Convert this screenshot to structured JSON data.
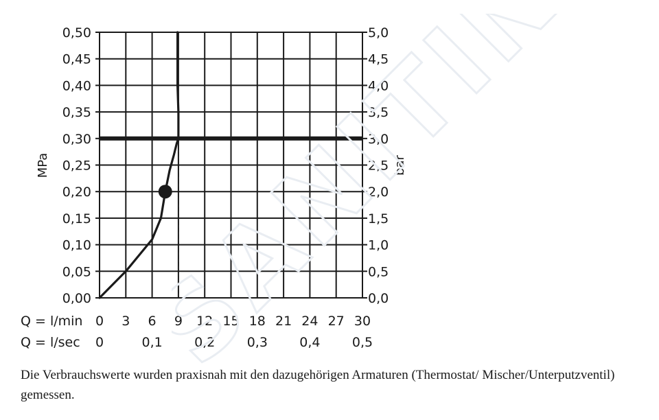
{
  "chart_data": {
    "type": "line",
    "left_axis": {
      "label": "MPa",
      "ticks": [
        "0,00",
        "0,05",
        "0,10",
        "0,15",
        "0,20",
        "0,25",
        "0,30",
        "0,35",
        "0,40",
        "0,45",
        "0,50"
      ],
      "range": [
        0,
        0.5
      ]
    },
    "right_axis": {
      "label": "bar",
      "ticks": [
        "0,0",
        "0,5",
        "1,0",
        "1,5",
        "2,0",
        "2,5",
        "3,0",
        "3,5",
        "4,0",
        "4,5",
        "5,0"
      ],
      "range": [
        0,
        5
      ]
    },
    "x_axis_lmin": {
      "label": "Q = l/min",
      "ticks": [
        "0",
        "3",
        "6",
        "9",
        "12",
        "15",
        "18",
        "21",
        "24",
        "27",
        "30"
      ],
      "range": [
        0,
        30
      ]
    },
    "x_axis_lsec": {
      "label": "Q = l/sec",
      "ticks": [
        "0",
        "0,1",
        "0,2",
        "0,3",
        "0,4",
        "0,5"
      ],
      "range": [
        0,
        0.5
      ]
    },
    "series": [
      {
        "x": [
          0,
          3,
          6,
          7,
          7.5,
          8,
          8.5,
          8.8,
          9,
          9,
          8.9,
          8.9,
          8.9
        ],
        "y": [
          0,
          0.05,
          0.11,
          0.15,
          0.2,
          0.24,
          0.27,
          0.29,
          0.3,
          0.35,
          0.4,
          0.45,
          0.5
        ]
      }
    ],
    "reference_line_y": 0.3,
    "reference_line_x": 9,
    "marker": {
      "x": 7.5,
      "y": 0.2
    },
    "grid": true
  },
  "caption": "Die Verbrauchswerte wurden praxisnah mit den dazugehörigen Armaturen (Thermostat/ Mischer/Unterputzventil) gemessen.",
  "watermark": "SANITINO"
}
